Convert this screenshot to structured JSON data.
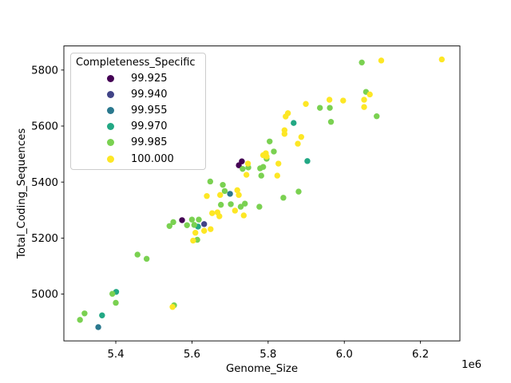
{
  "figure": {
    "background": "#ffffff"
  },
  "legend": {
    "title": "Completeness_Specific",
    "entries": [
      {
        "label": "99.925",
        "color": "#440154"
      },
      {
        "label": "99.940",
        "color": "#414487"
      },
      {
        "label": "99.955",
        "color": "#2a788e"
      },
      {
        "label": "99.970",
        "color": "#22a884"
      },
      {
        "label": "99.985",
        "color": "#7ad151"
      },
      {
        "label": "100.000",
        "color": "#fde725"
      }
    ]
  },
  "chart_data": {
    "type": "scatter",
    "title": "",
    "xlabel": "Genome_Size",
    "ylabel": "Total_Coding_Sequences",
    "x_offset_label": "1e6",
    "grid": false,
    "legend_title": "Completeness_Specific",
    "legend_position": "upper left",
    "xlim": [
      5263700,
      6303500
    ],
    "ylim": [
      4833,
      5886
    ],
    "xticks": {
      "values": [
        5400000,
        5600000,
        5800000,
        6000000,
        6200000
      ],
      "labels": [
        "5.4",
        "5.6",
        "5.8",
        "6.0",
        "6.2"
      ]
    },
    "yticks": {
      "values": [
        5000,
        5200,
        5400,
        5600,
        5800
      ],
      "labels": [
        "5000",
        "5200",
        "5400",
        "5600",
        "5800"
      ]
    },
    "series": [
      {
        "name": "99.925",
        "color": "#440154",
        "points": [
          [
            5731000,
            5474
          ],
          [
            5723000,
            5460
          ],
          [
            5574000,
            5264
          ]
        ]
      },
      {
        "name": "99.940",
        "color": "#414487",
        "points": [
          [
            5632000,
            5250
          ]
        ]
      },
      {
        "name": "99.955",
        "color": "#2a788e",
        "points": [
          [
            5700000,
            5358
          ],
          [
            5354000,
            4882
          ]
        ]
      },
      {
        "name": "99.970",
        "color": "#22a884",
        "points": [
          [
            5867000,
            5611
          ],
          [
            5903000,
            5475
          ],
          [
            5616000,
            5241
          ],
          [
            5401000,
            5008
          ],
          [
            5364000,
            4924
          ]
        ]
      },
      {
        "name": "99.985",
        "color": "#7ad151",
        "points": [
          [
            6046000,
            5827
          ],
          [
            6057000,
            5722
          ],
          [
            6085000,
            5635
          ],
          [
            5965000,
            5615
          ],
          [
            5936000,
            5665
          ],
          [
            5962000,
            5665
          ],
          [
            5804000,
            5545
          ],
          [
            5815000,
            5509
          ],
          [
            5796000,
            5483
          ],
          [
            5779000,
            5449
          ],
          [
            5787000,
            5454
          ],
          [
            5748000,
            5452
          ],
          [
            5733000,
            5447
          ],
          [
            5782000,
            5423
          ],
          [
            5648000,
            5402
          ],
          [
            5681000,
            5390
          ],
          [
            5686000,
            5368
          ],
          [
            5676000,
            5319
          ],
          [
            5702000,
            5321
          ],
          [
            5739000,
            5323
          ],
          [
            5728000,
            5312
          ],
          [
            5777000,
            5312
          ],
          [
            5880000,
            5366
          ],
          [
            5840000,
            5344
          ],
          [
            5541000,
            5243
          ],
          [
            5551000,
            5257
          ],
          [
            5587000,
            5246
          ],
          [
            5600000,
            5266
          ],
          [
            5618000,
            5266
          ],
          [
            5606000,
            5247
          ],
          [
            5614000,
            5194
          ],
          [
            5457000,
            5141
          ],
          [
            5481000,
            5126
          ],
          [
            5391000,
            5001
          ],
          [
            5400000,
            4969
          ],
          [
            5318000,
            4931
          ],
          [
            5306000,
            4908
          ],
          [
            5553000,
            4960
          ]
        ]
      },
      {
        "name": "100.000",
        "color": "#fde725",
        "points": [
          [
            6097000,
            5834
          ],
          [
            6256000,
            5838
          ],
          [
            6067000,
            5713
          ],
          [
            6052000,
            5694
          ],
          [
            5997000,
            5691
          ],
          [
            6052000,
            5668
          ],
          [
            5852000,
            5646
          ],
          [
            5846000,
            5634
          ],
          [
            5899000,
            5679
          ],
          [
            5961000,
            5694
          ],
          [
            5843000,
            5585
          ],
          [
            5843000,
            5572
          ],
          [
            5887000,
            5561
          ],
          [
            5878000,
            5537
          ],
          [
            5794000,
            5503
          ],
          [
            5787000,
            5496
          ],
          [
            5827000,
            5466
          ],
          [
            5747000,
            5466
          ],
          [
            5743000,
            5426
          ],
          [
            5796000,
            5491
          ],
          [
            5824000,
            5423
          ],
          [
            5719000,
            5371
          ],
          [
            5723000,
            5354
          ],
          [
            5639000,
            5350
          ],
          [
            5674000,
            5354
          ],
          [
            5713000,
            5298
          ],
          [
            5736000,
            5281
          ],
          [
            5653000,
            5289
          ],
          [
            5667000,
            5292
          ],
          [
            5672000,
            5278
          ],
          [
            5632000,
            5226
          ],
          [
            5649000,
            5232
          ],
          [
            5609000,
            5219
          ],
          [
            5603000,
            5191
          ],
          [
            5549000,
            4954
          ]
        ]
      }
    ]
  }
}
